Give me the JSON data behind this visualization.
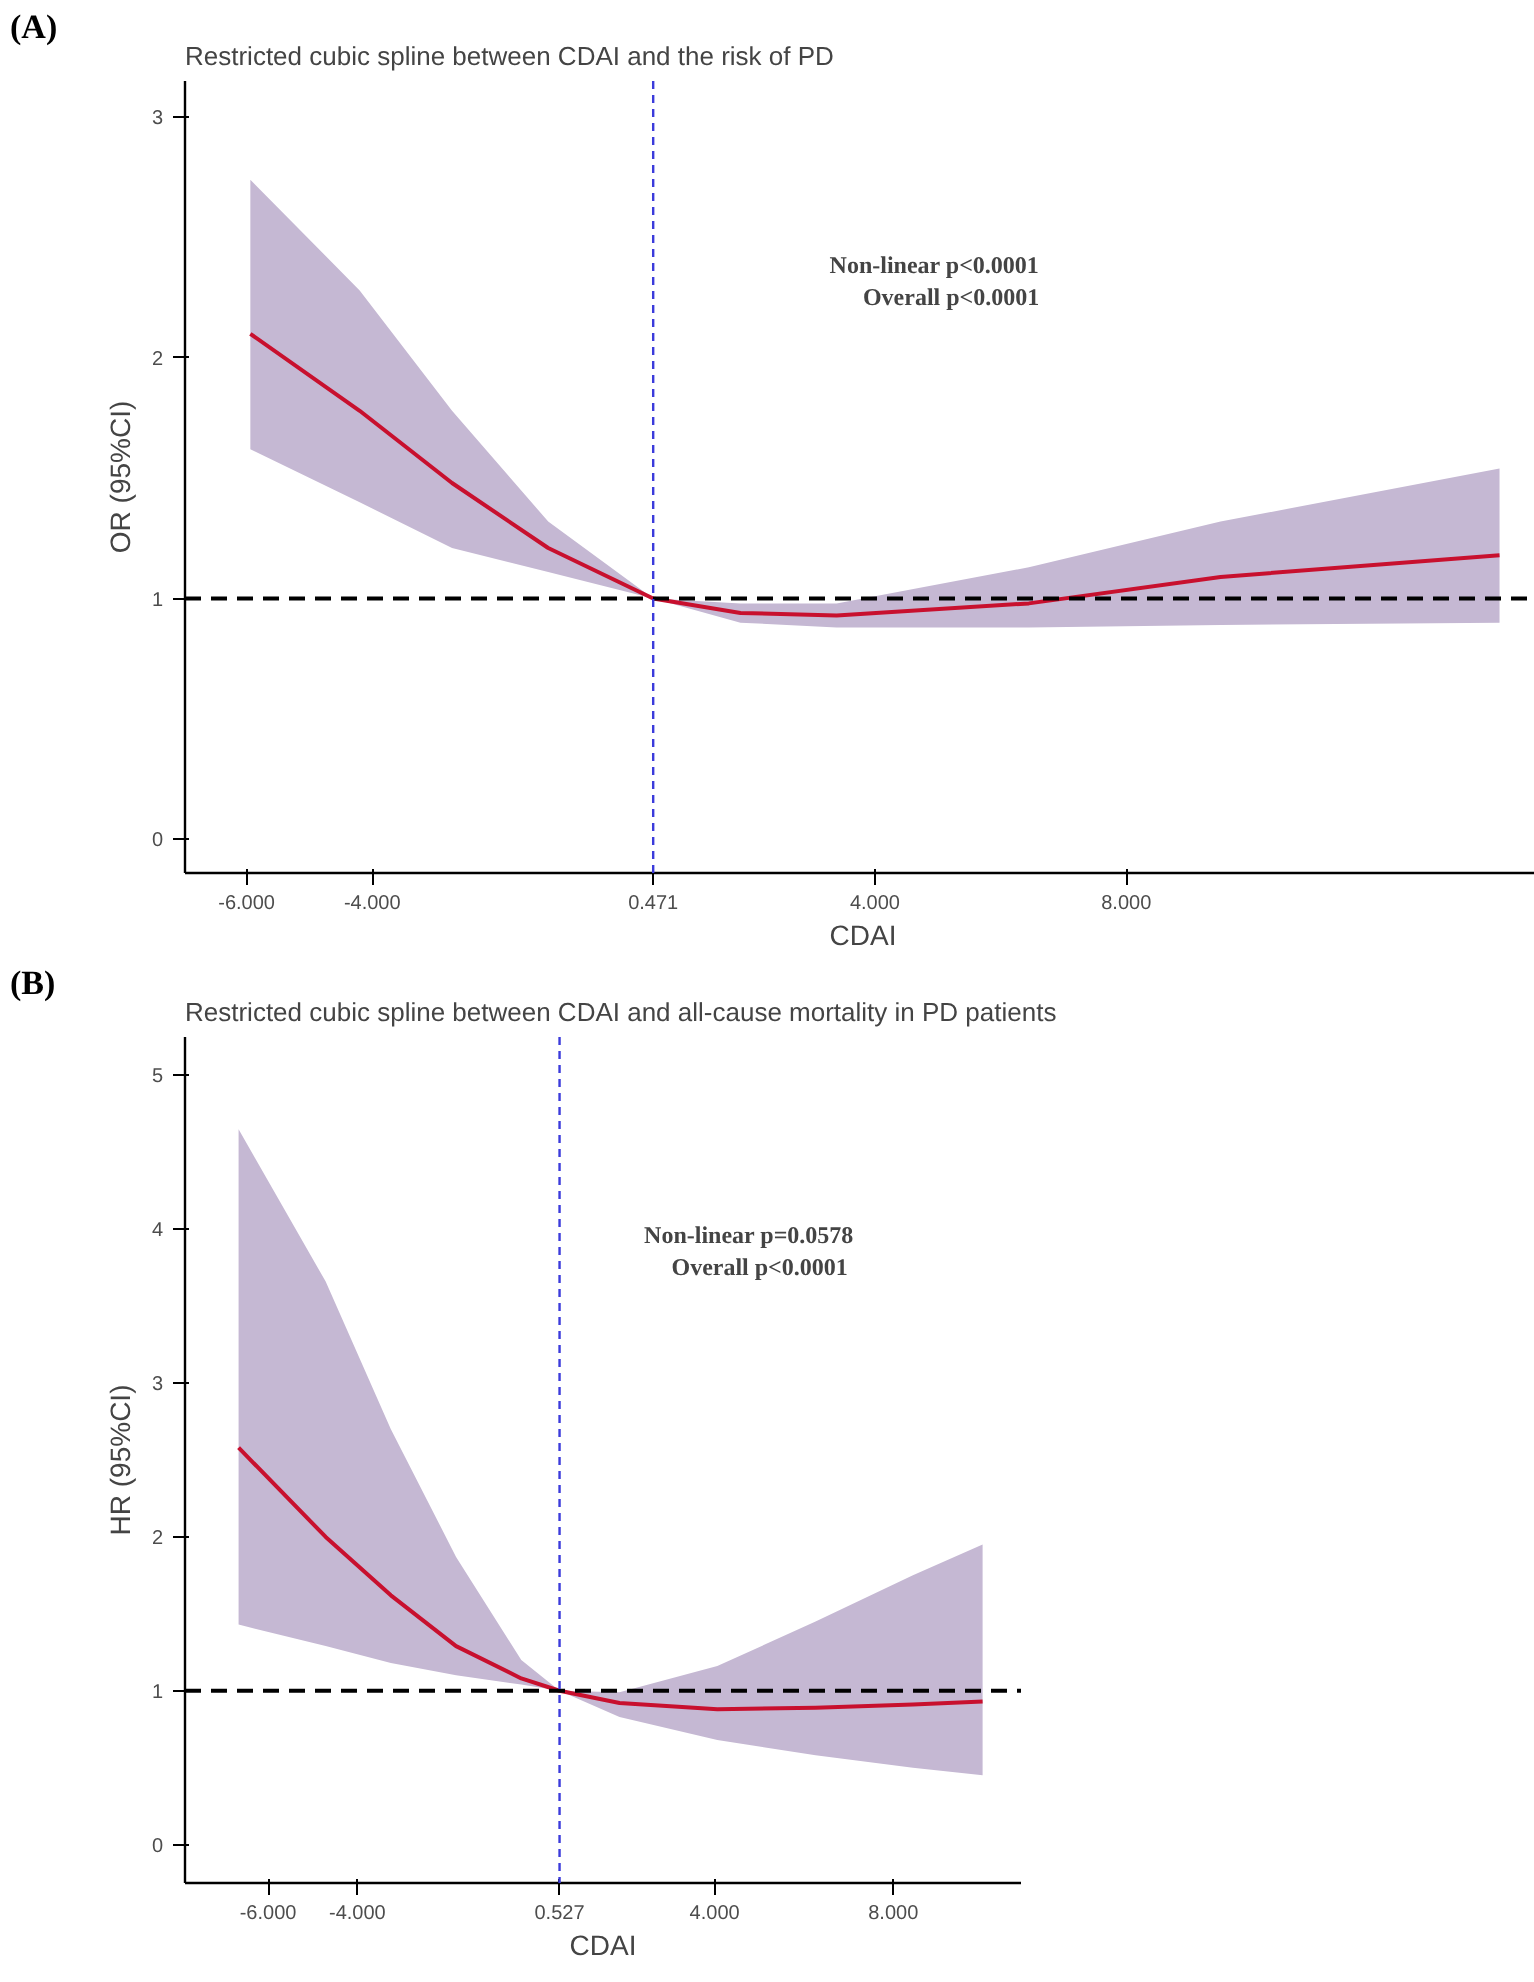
{
  "chart_data": [
    {
      "type": "line",
      "title": "Restricted cubic spline between CDAI and the risk of PD",
      "xlabel": "CDAI",
      "ylabel": "OR (95%CI)",
      "annotations": [
        "(A)",
        "Non-linear p<0.0001",
        "Overall p<0.0001"
      ],
      "grid": false,
      "line_style": "solid",
      "xlim": [
        -6.98,
        14.6
      ],
      "ylim": [
        -0.14,
        3.15
      ],
      "xticks": [
        {
          "value": -6,
          "label": "-6.000"
        },
        {
          "value": -4,
          "label": "-4.000"
        },
        {
          "value": 0.471,
          "label": "0.471"
        },
        {
          "value": 4,
          "label": "4.000"
        },
        {
          "value": 8,
          "label": "8.000"
        }
      ],
      "yticks": [
        0,
        1,
        2,
        3
      ],
      "series": [
        {
          "color": "#c8102e",
          "x": [
            -5.94,
            -4.2,
            -2.73,
            -1.2,
            0.471,
            1.86,
            3.39,
            6.45,
            9.5,
            13.94
          ],
          "values": [
            2.1,
            1.78,
            1.48,
            1.21,
            1.0,
            0.94,
            0.93,
            0.98,
            1.09,
            1.18
          ],
          "lower": [
            1.62,
            1.4,
            1.21,
            1.11,
            1.0,
            0.9,
            0.88,
            0.88,
            0.89,
            0.9
          ],
          "upper": [
            2.74,
            2.28,
            1.78,
            1.32,
            1.0,
            0.98,
            0.98,
            1.13,
            1.32,
            1.54
          ]
        }
      ],
      "ref_lines": [
        {
          "axis": "y",
          "value": 1,
          "color": "#000000",
          "line_style": "dashed"
        },
        {
          "axis": "x",
          "value": 0.471,
          "color": "#3b3bdb",
          "line_style": "dotted"
        }
      ]
    },
    {
      "type": "line",
      "title": "Restricted cubic spline between CDAI and  all-cause mortality in PD patients",
      "xlabel": "CDAI",
      "ylabel": "HR (95%CI)",
      "annotations": [
        "(B)",
        "Non-linear p=0.0578",
        "Overall  p<0.0001"
      ],
      "grid": false,
      "line_style": "solid",
      "xlim": [
        -7.86,
        10.86
      ],
      "ylim": [
        -0.25,
        5.25
      ],
      "xticks": [
        {
          "value": -6,
          "label": "-6.000"
        },
        {
          "value": -4,
          "label": "-4.000"
        },
        {
          "value": 0.527,
          "label": "0.527"
        },
        {
          "value": 4,
          "label": "4.000"
        },
        {
          "value": 8,
          "label": "8.000"
        }
      ],
      "yticks": [
        0,
        1,
        2,
        3,
        4,
        5
      ],
      "series": [
        {
          "color": "#c8102e",
          "x": [
            -6.66,
            -4.71,
            -3.25,
            -1.79,
            -0.33,
            0.527,
            1.87,
            4.06,
            6.26,
            8.44,
            10.0
          ],
          "values": [
            2.58,
            2.0,
            1.62,
            1.29,
            1.08,
            1.0,
            0.92,
            0.88,
            0.89,
            0.91,
            0.93
          ],
          "lower": [
            1.43,
            1.29,
            1.18,
            1.1,
            1.04,
            1.0,
            0.83,
            0.68,
            0.58,
            0.5,
            0.45
          ],
          "upper": [
            4.65,
            3.66,
            2.7,
            1.87,
            1.2,
            1.0,
            0.99,
            1.16,
            1.45,
            1.75,
            1.95
          ]
        }
      ],
      "ref_lines": [
        {
          "axis": "y",
          "value": 1,
          "color": "#000000",
          "line_style": "dashed"
        },
        {
          "axis": "x",
          "value": 0.527,
          "color": "#3b3bdb",
          "line_style": "dotted"
        }
      ]
    }
  ]
}
